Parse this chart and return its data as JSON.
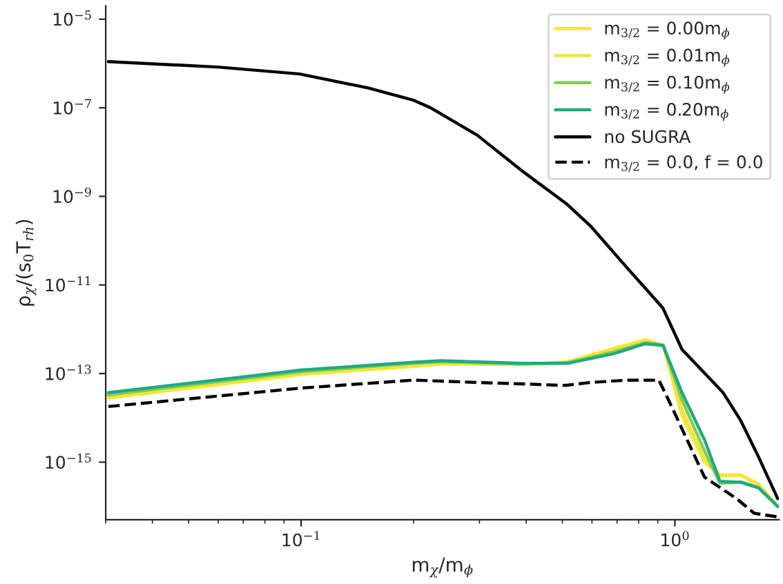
{
  "chart_data": {
    "type": "line",
    "xlabel": "m$_{χ}$/m$_{ϕ}$",
    "ylabel": "ρ$_{χ}$/(s$_{0}$T$_{rh}$)",
    "log": "xy",
    "grid": false,
    "legend": "top right",
    "xlim": [
      0.03,
      1.9
    ],
    "ylim": [
      5e-17,
      2e-05
    ],
    "xticks": [
      {
        "value": 0.1,
        "label": "10$^{−1}$"
      },
      {
        "value": 1,
        "label": "10$^{0}$"
      }
    ],
    "yticks": [
      {
        "value": 1e-15,
        "label": "10$^{−15}$"
      },
      {
        "value": 1e-13,
        "label": "10$^{−13}$"
      },
      {
        "value": 1e-11,
        "label": "10$^{−11}$"
      },
      {
        "value": 1e-09,
        "label": "10$^{−9}$"
      },
      {
        "value": 1e-07,
        "label": "10$^{−7}$"
      },
      {
        "value": 1e-05,
        "label": "10$^{−5}$"
      }
    ],
    "series": [
      {
        "name": "m$_{3/2}$ = 0.00m$_{ϕ}$",
        "color": "#fde725",
        "line_style": "solid",
        "x": [
          0.0305,
          0.1,
          0.2,
          0.236,
          0.391,
          0.516,
          0.687,
          0.833,
          0.93,
          1.045,
          1.2,
          1.32,
          1.5,
          1.675,
          1.884
        ],
        "values": [
          2.8e-14,
          9.5e-14,
          1.45e-13,
          1.65e-13,
          1.6e-13,
          1.85e-13,
          3.7e-13,
          5.8e-13,
          4.4e-13,
          1.1e-14,
          1e-15,
          5.2e-16,
          5.2e-16,
          3.2e-16,
          1e-16
        ]
      },
      {
        "name": "m$_{3/2}$ = 0.01m$_{ϕ}$",
        "color": "#f2e53a",
        "line_style": "solid",
        "x": [
          0.0305,
          0.1,
          0.2,
          0.236,
          0.391,
          0.516,
          0.687,
          0.833,
          0.93,
          1.045,
          1.2,
          1.32,
          1.5,
          1.675,
          1.884
        ],
        "values": [
          3e-14,
          1e-13,
          1.55e-13,
          1.75e-13,
          1.6e-13,
          1.8e-13,
          3.4e-13,
          5.4e-13,
          4.4e-13,
          1.5e-14,
          1.2e-15,
          5e-16,
          5e-16,
          3.1e-16,
          1e-16
        ]
      },
      {
        "name": "m$_{3/2}$ = 0.10m$_{ϕ}$",
        "color": "#7ad151",
        "line_style": "solid",
        "x": [
          0.0305,
          0.1,
          0.2,
          0.236,
          0.391,
          0.516,
          0.687,
          0.833,
          0.93,
          1.045,
          1.2,
          1.32,
          1.5,
          1.675,
          1.884
        ],
        "values": [
          3.3e-14,
          1.1e-13,
          1.7e-13,
          1.85e-13,
          1.65e-13,
          1.75e-13,
          3.1e-13,
          5e-13,
          4.4e-13,
          2.5e-14,
          1.8e-15,
          3.3e-16,
          3.6e-16,
          2.7e-16,
          1e-16
        ]
      },
      {
        "name": "m$_{3/2}$ = 0.20m$_{ϕ}$",
        "color": "#22a884",
        "line_style": "solid",
        "x": [
          0.0305,
          0.1,
          0.2,
          0.236,
          0.391,
          0.516,
          0.687,
          0.833,
          0.93,
          1.045,
          1.2,
          1.32,
          1.5,
          1.675,
          1.884
        ],
        "values": [
          3.7e-14,
          1.2e-13,
          1.8e-13,
          1.95e-13,
          1.7e-13,
          1.7e-13,
          2.8e-13,
          4.7e-13,
          4.3e-13,
          3.7e-14,
          3.2e-15,
          3.7e-16,
          3.5e-16,
          2.6e-16,
          1e-16
        ]
      },
      {
        "name": "no SUGRA",
        "color": "#000000",
        "line_style": "solid",
        "x": [
          0.0305,
          0.0598,
          0.099,
          0.151,
          0.199,
          0.222,
          0.296,
          0.391,
          0.515,
          0.596,
          0.746,
          0.929,
          1.045,
          1.346,
          1.5,
          1.675,
          1.884
        ],
        "values": [
          1.1e-06,
          8.3e-07,
          5.8e-07,
          2.8e-07,
          1.5e-07,
          1e-07,
          2.4e-08,
          3.7e-09,
          6.6e-10,
          2.1e-10,
          2.4e-11,
          3e-12,
          3.5e-13,
          3.7e-14,
          8.7e-15,
          1.3e-15,
          1.5e-16
        ]
      },
      {
        "name": "m$_{3/2}$ = 0.0, f = 0.0",
        "color": "#000000",
        "line_style": "dashed",
        "x": [
          0.0305,
          0.1,
          0.2,
          0.296,
          0.51,
          0.596,
          0.746,
          0.906,
          0.96,
          1.2,
          1.47,
          1.63,
          1.884
        ],
        "values": [
          1.8e-14,
          4.7e-14,
          7.1e-14,
          6.3e-14,
          5.4e-14,
          6.3e-14,
          7.1e-14,
          7.1e-14,
          2.6e-14,
          4.6e-16,
          1.45e-16,
          7e-17,
          5.8e-17
        ]
      }
    ]
  }
}
